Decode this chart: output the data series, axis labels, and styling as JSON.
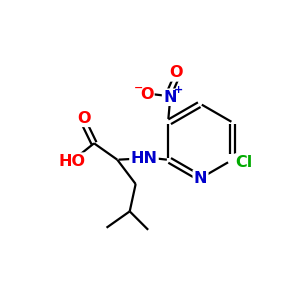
{
  "bg_color": "#ffffff",
  "atom_colors": {
    "C": "#000000",
    "N": "#0000cc",
    "O": "#ff0000",
    "Cl": "#00aa00",
    "H": "#000000"
  },
  "figsize": [
    3.0,
    3.0
  ],
  "dpi": 100,
  "bond_lw": 1.6,
  "fs_main": 11.5,
  "fs_super": 7
}
